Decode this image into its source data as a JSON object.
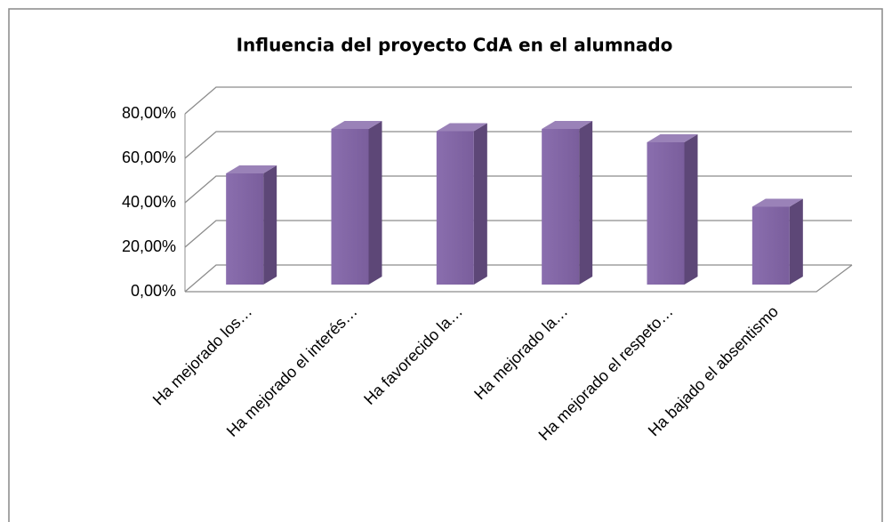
{
  "chart_data": {
    "type": "bar3d",
    "title": "Influencia del proyecto CdA en el alumnado",
    "categories": [
      "Ha mejorado los…",
      "Ha mejorado el interés…",
      "Ha favorecido la…",
      "Ha mejorado la…",
      "Ha mejorado el respeto…",
      "Ha bajado el absentismo"
    ],
    "values": [
      50,
      70,
      69,
      70,
      64,
      35
    ],
    "color": "#8064a2",
    "ylim": [
      0,
      80
    ],
    "yticks": [
      {
        "value": 0,
        "label": "0,00%"
      },
      {
        "value": 20,
        "label": "20,00%"
      },
      {
        "value": 40,
        "label": "40,00%"
      },
      {
        "value": 60,
        "label": "60,00%"
      },
      {
        "value": 80,
        "label": "80,00%"
      }
    ],
    "grid": true
  }
}
